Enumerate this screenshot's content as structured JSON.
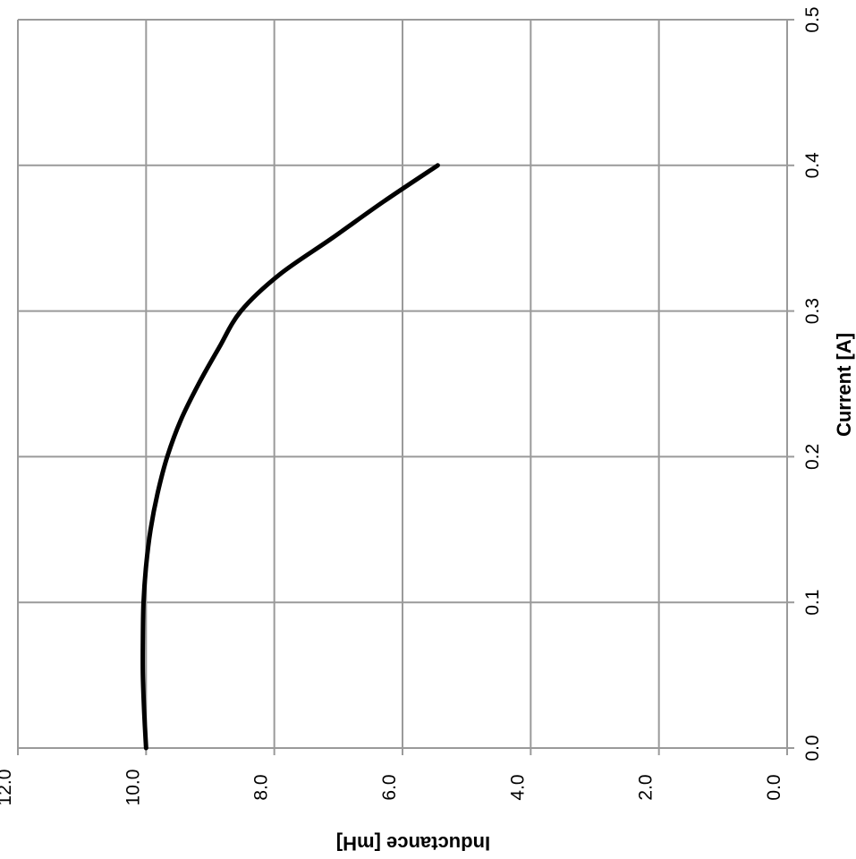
{
  "chart_data": {
    "type": "line",
    "orientation": "rotated-90-clockwise",
    "title": "",
    "xlabel": "Current [A]",
    "ylabel": "Inductance [mH]",
    "xlim": [
      0.0,
      0.5
    ],
    "ylim": [
      0.0,
      12.0
    ],
    "x_ticks": [
      "0.0",
      "0.1",
      "0.2",
      "0.3",
      "0.4",
      "0.5"
    ],
    "y_ticks": [
      "0.0",
      "2.0",
      "4.0",
      "6.0",
      "8.0",
      "10.0",
      "12.0"
    ],
    "grid": true,
    "legend": "none",
    "series": [
      {
        "color": "#000000",
        "x": [
          0.0,
          0.025,
          0.05,
          0.075,
          0.1,
          0.125,
          0.15,
          0.175,
          0.2,
          0.225,
          0.25,
          0.275,
          0.3,
          0.325,
          0.35,
          0.375,
          0.4
        ],
        "y": [
          10.0,
          10.03,
          10.05,
          10.05,
          10.04,
          10.0,
          9.93,
          9.82,
          9.67,
          9.46,
          9.18,
          8.86,
          8.52,
          7.92,
          7.1,
          6.3,
          5.45
        ]
      }
    ]
  }
}
